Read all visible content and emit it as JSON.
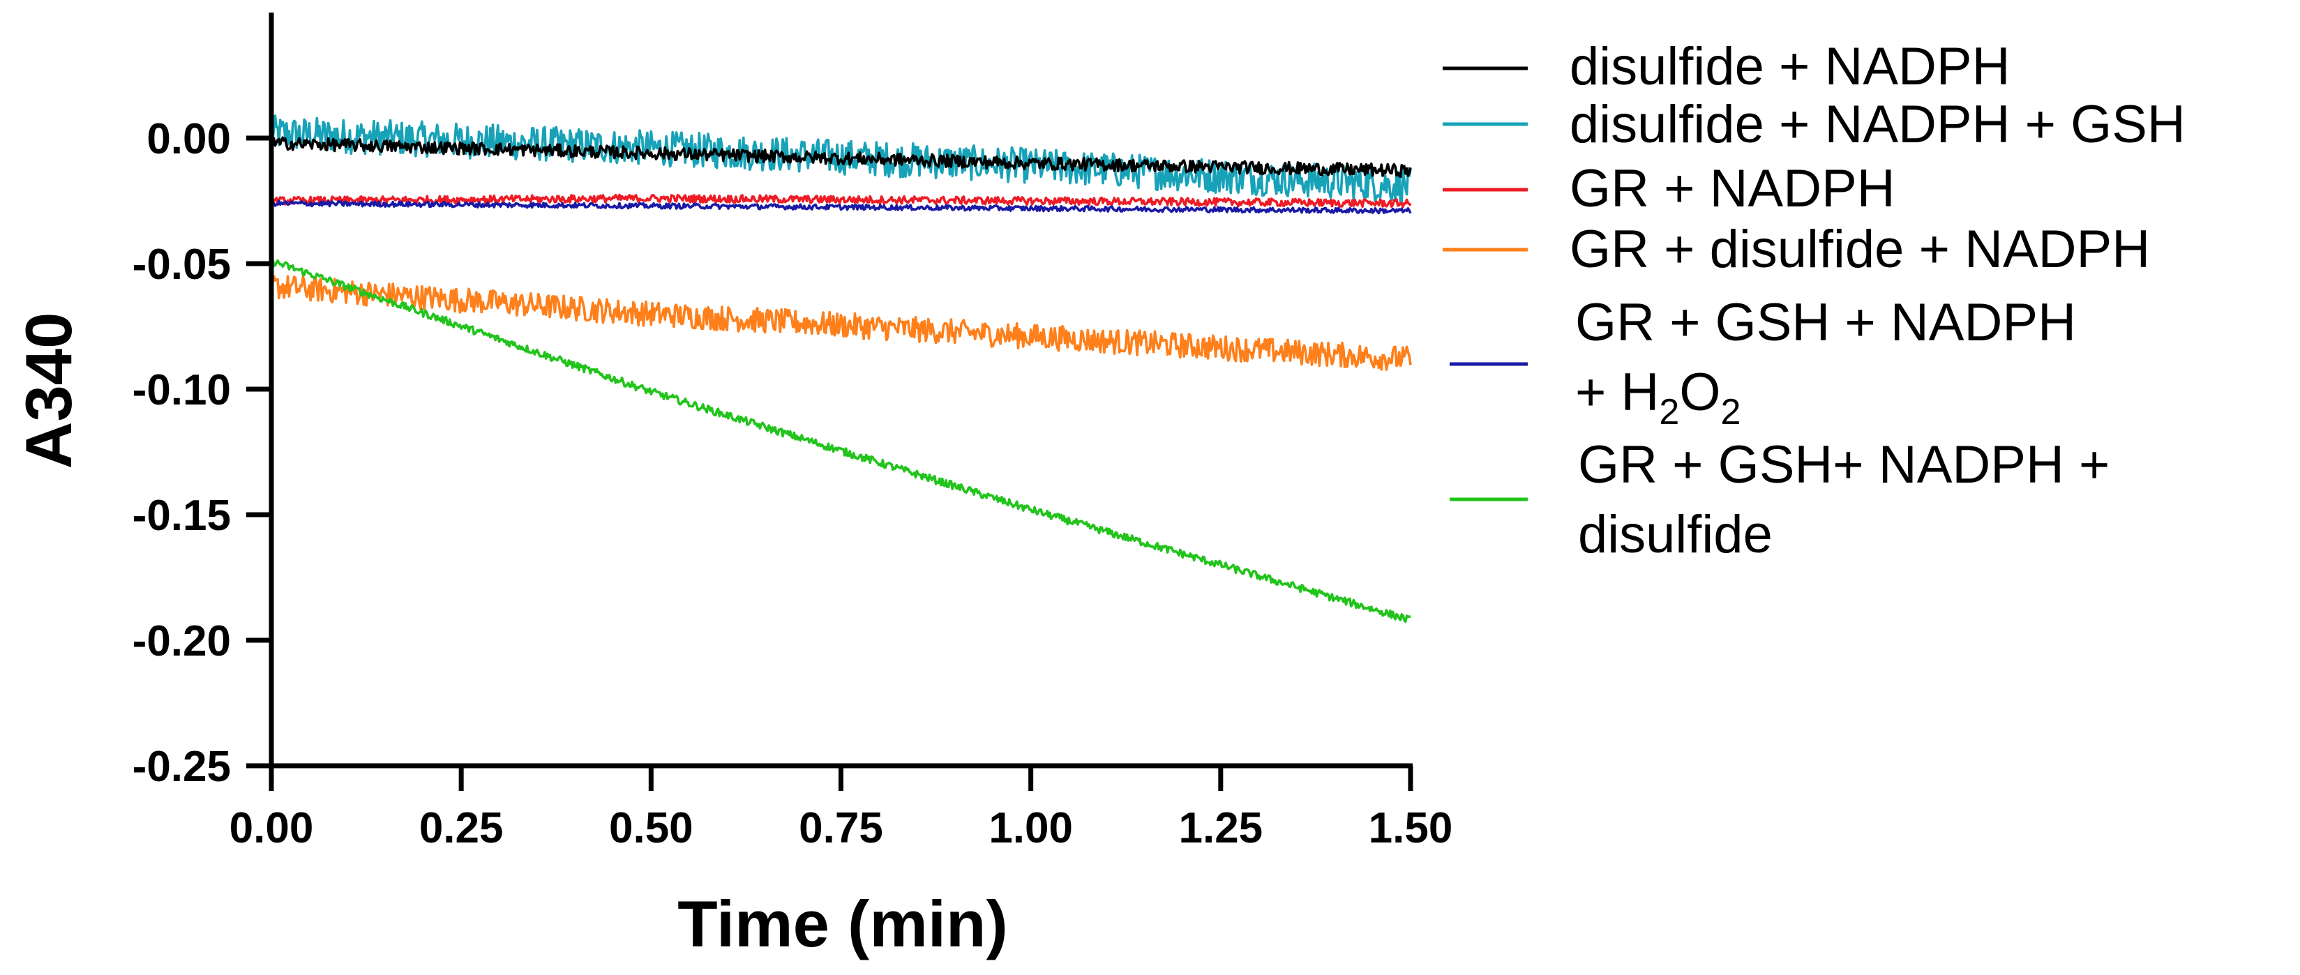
{
  "chart_data": {
    "type": "line",
    "title": "",
    "xlabel": "Time (min)",
    "ylabel": "A340",
    "xlim": [
      0,
      1.5
    ],
    "ylim": [
      -0.25,
      0.05
    ],
    "x_ticks": [
      "0.00",
      "0.25",
      "0.50",
      "0.75",
      "1.00",
      "1.25",
      "1.50"
    ],
    "y_ticks": [
      "0.00",
      "-0.05",
      "-0.10",
      "-0.15",
      "-0.20",
      "-0.25"
    ],
    "legend_position": "right",
    "series": [
      {
        "name": "disulfide + NADPH",
        "color": "#000000",
        "x": [
          0,
          0.5,
          1.0,
          1.5
        ],
        "values": [
          -0.002,
          -0.006,
          -0.01,
          -0.013
        ],
        "noise": 0.0025
      },
      {
        "name": "disulfide + NADPH + GSH",
        "color": "#17a2b8",
        "x": [
          0,
          0.5,
          1.0,
          1.5
        ],
        "values": [
          0.002,
          -0.004,
          -0.011,
          -0.019
        ],
        "noise": 0.007
      },
      {
        "name": "GR + NADPH",
        "color": "#ee1c25",
        "x": [
          0,
          0.5,
          1.0,
          1.5
        ],
        "values": [
          -0.025,
          -0.024,
          -0.025,
          -0.026
        ],
        "noise": 0.0015
      },
      {
        "name": "GR + disulfide + NADPH",
        "color": "#ff7f1a",
        "x": [
          0,
          0.5,
          1.0,
          1.5
        ],
        "values": [
          -0.059,
          -0.07,
          -0.079,
          -0.088
        ],
        "noise": 0.005
      },
      {
        "name_parts": [
          "GR + GSH + NADPH",
          "+ H",
          "2",
          "O",
          "2"
        ],
        "color": "#1a1aa6",
        "x": [
          0,
          0.5,
          1.0,
          1.5
        ],
        "values": [
          -0.026,
          -0.027,
          -0.028,
          -0.029
        ],
        "noise": 0.001
      },
      {
        "name_parts": [
          "GR + GSH+ NADPH +",
          "disulfide"
        ],
        "color": "#22c41c",
        "x": [
          0,
          0.05,
          0.5,
          1.0,
          1.5
        ],
        "values": [
          -0.049,
          -0.054,
          -0.101,
          -0.148,
          -0.192
        ],
        "noise": 0.0015
      }
    ]
  }
}
